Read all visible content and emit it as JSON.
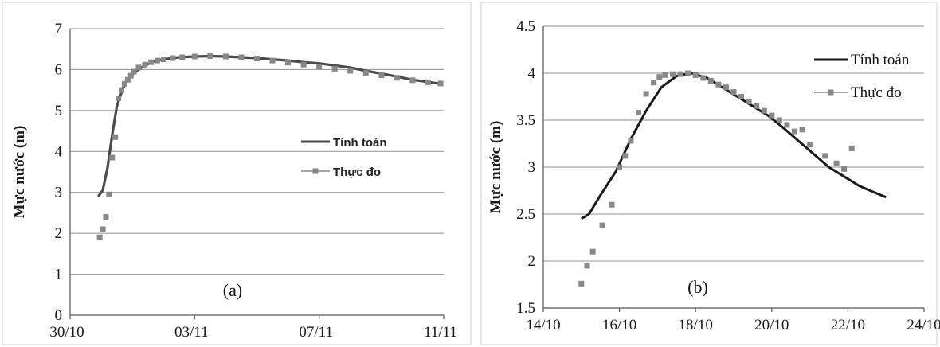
{
  "chart_data": [
    {
      "type": "line",
      "panel_label": "(a)",
      "ylabel": "Mực nước (m)",
      "xlabel": "",
      "ylim": [
        0,
        7
      ],
      "yticks": [
        "0",
        "1",
        "2",
        "3",
        "4",
        "5",
        "6",
        "7"
      ],
      "xlim": [
        0,
        12
      ],
      "xticks": [
        {
          "label": "30/10",
          "x": 0
        },
        {
          "label": "03/11",
          "x": 4
        },
        {
          "label": "07/11",
          "x": 8
        },
        {
          "label": "11/11",
          "x": 12
        }
      ],
      "grid": true,
      "legend_position": "center-right",
      "series": [
        {
          "name": "Tính toán",
          "style": "line",
          "color": "#4a4a4a",
          "points": [
            [
              0.9,
              2.9
            ],
            [
              1.05,
              3.05
            ],
            [
              1.2,
              3.6
            ],
            [
              1.35,
              4.4
            ],
            [
              1.5,
              5.1
            ],
            [
              1.7,
              5.55
            ],
            [
              1.9,
              5.8
            ],
            [
              2.1,
              5.95
            ],
            [
              2.4,
              6.1
            ],
            [
              2.7,
              6.2
            ],
            [
              3.0,
              6.25
            ],
            [
              3.5,
              6.3
            ],
            [
              4.0,
              6.32
            ],
            [
              4.5,
              6.33
            ],
            [
              5.0,
              6.32
            ],
            [
              5.5,
              6.3
            ],
            [
              6.0,
              6.28
            ],
            [
              6.5,
              6.25
            ],
            [
              7.0,
              6.22
            ],
            [
              7.5,
              6.18
            ],
            [
              8.0,
              6.15
            ],
            [
              8.5,
              6.1
            ],
            [
              9.0,
              6.05
            ],
            [
              9.5,
              5.97
            ],
            [
              10.0,
              5.9
            ],
            [
              10.5,
              5.83
            ],
            [
              11.0,
              5.75
            ],
            [
              11.5,
              5.7
            ],
            [
              11.9,
              5.65
            ]
          ]
        },
        {
          "name": "Thực đo",
          "style": "square-marker-line",
          "color": "#888888",
          "points": [
            [
              0.95,
              1.9
            ],
            [
              1.05,
              2.1
            ],
            [
              1.15,
              2.4
            ],
            [
              1.25,
              2.95
            ],
            [
              1.35,
              3.85
            ],
            [
              1.45,
              4.35
            ],
            [
              1.55,
              5.3
            ],
            [
              1.65,
              5.5
            ],
            [
              1.75,
              5.65
            ],
            [
              1.85,
              5.75
            ],
            [
              1.95,
              5.85
            ],
            [
              2.05,
              5.95
            ],
            [
              2.2,
              6.05
            ],
            [
              2.4,
              6.12
            ],
            [
              2.6,
              6.18
            ],
            [
              2.8,
              6.22
            ],
            [
              3.0,
              6.25
            ],
            [
              3.3,
              6.28
            ],
            [
              3.6,
              6.3
            ],
            [
              4.0,
              6.32
            ],
            [
              4.5,
              6.33
            ],
            [
              5.0,
              6.32
            ],
            [
              5.5,
              6.3
            ],
            [
              6.0,
              6.27
            ],
            [
              6.5,
              6.22
            ],
            [
              7.0,
              6.17
            ],
            [
              7.5,
              6.12
            ],
            [
              8.0,
              6.07
            ],
            [
              8.5,
              6.02
            ],
            [
              9.0,
              5.97
            ],
            [
              9.5,
              5.92
            ],
            [
              10.0,
              5.86
            ],
            [
              10.5,
              5.8
            ],
            [
              11.0,
              5.74
            ],
            [
              11.5,
              5.69
            ],
            [
              11.9,
              5.66
            ]
          ]
        }
      ]
    },
    {
      "type": "line",
      "panel_label": "(b)",
      "ylabel": "Mực nước (m)",
      "xlabel": "",
      "ylim": [
        1.5,
        4.5
      ],
      "yticks": [
        "1.5",
        "2",
        "2.5",
        "3",
        "3.5",
        "4",
        "4.5"
      ],
      "xlim": [
        0,
        10
      ],
      "xticks": [
        {
          "label": "14/10",
          "x": 0
        },
        {
          "label": "16/10",
          "x": 2
        },
        {
          "label": "18/10",
          "x": 4
        },
        {
          "label": "20/10",
          "x": 6
        },
        {
          "label": "22/10",
          "x": 8
        },
        {
          "label": "24/10",
          "x": 10
        }
      ],
      "grid": true,
      "legend_position": "top-right",
      "series": [
        {
          "name": "Tính toán",
          "style": "line",
          "color": "#1a1a1a",
          "points": [
            [
              1.0,
              2.45
            ],
            [
              1.2,
              2.5
            ],
            [
              1.5,
              2.7
            ],
            [
              1.9,
              2.95
            ],
            [
              2.3,
              3.3
            ],
            [
              2.7,
              3.6
            ],
            [
              3.1,
              3.85
            ],
            [
              3.5,
              3.97
            ],
            [
              3.9,
              4.0
            ],
            [
              4.3,
              3.95
            ],
            [
              4.7,
              3.85
            ],
            [
              5.1,
              3.75
            ],
            [
              5.5,
              3.65
            ],
            [
              5.9,
              3.55
            ],
            [
              6.3,
              3.42
            ],
            [
              6.7,
              3.28
            ],
            [
              7.1,
              3.14
            ],
            [
              7.5,
              3.0
            ],
            [
              7.9,
              2.9
            ],
            [
              8.3,
              2.8
            ],
            [
              8.7,
              2.73
            ],
            [
              9.0,
              2.68
            ]
          ]
        },
        {
          "name": "Thực đo",
          "style": "square-marker-line",
          "color": "#888888",
          "points": [
            [
              1.0,
              1.76
            ],
            [
              1.15,
              1.95
            ],
            [
              1.3,
              2.1
            ],
            [
              1.55,
              2.38
            ],
            [
              1.8,
              2.6
            ],
            [
              2.0,
              3.0
            ],
            [
              2.15,
              3.12
            ],
            [
              2.3,
              3.28
            ],
            [
              2.5,
              3.58
            ],
            [
              2.7,
              3.78
            ],
            [
              2.9,
              3.9
            ],
            [
              3.05,
              3.96
            ],
            [
              3.2,
              3.98
            ],
            [
              3.4,
              3.99
            ],
            [
              3.6,
              3.99
            ],
            [
              3.8,
              4.0
            ],
            [
              4.0,
              3.98
            ],
            [
              4.2,
              3.95
            ],
            [
              4.4,
              3.92
            ],
            [
              4.6,
              3.88
            ],
            [
              4.8,
              3.85
            ],
            [
              5.0,
              3.8
            ],
            [
              5.2,
              3.75
            ],
            [
              5.4,
              3.7
            ],
            [
              5.6,
              3.65
            ],
            [
              5.8,
              3.6
            ],
            [
              6.0,
              3.55
            ],
            [
              6.2,
              3.5
            ],
            [
              6.4,
              3.45
            ],
            [
              6.6,
              3.38
            ],
            [
              6.8,
              3.4
            ],
            [
              7.0,
              3.24
            ],
            [
              7.4,
              3.12
            ],
            [
              7.7,
              3.04
            ],
            [
              7.9,
              2.98
            ],
            [
              8.1,
              3.2
            ]
          ]
        }
      ]
    }
  ]
}
